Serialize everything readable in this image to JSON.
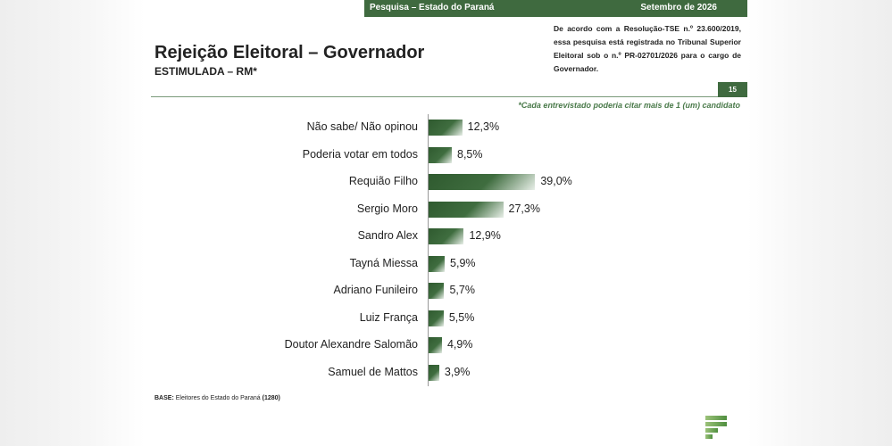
{
  "header": {
    "survey_label": "Pesquisa – Estado do Paraná",
    "date_label": "Setembro de 2026"
  },
  "title": "Rejeição Eleitoral – Governador",
  "subtitle": "ESTIMULADA – RM*",
  "registration_note": "De acordo com a Resolução-TSE n.º 23.600/2019, essa pesquisa está registrada no Tribunal Superior Eleitoral sob o n.º PR-02701/2026 para o cargo de Governador.",
  "page_number": "15",
  "footnote": "*Cada entrevistado poderia citar mais de 1 (um) candidato",
  "base": {
    "label": "BASE:",
    "text": "Eleitores do Estado do Paraná",
    "count": "(1280)"
  },
  "colors": {
    "brand_green": "#3f6a3f",
    "bar_dark": "#2f5a2f",
    "accent_text": "#4a7a4a"
  },
  "chart_data": {
    "type": "bar",
    "orientation": "horizontal",
    "categories": [
      "Não sabe/ Não opinou",
      "Poderia votar em todos",
      "Requião Filho",
      "Sergio Moro",
      "Sandro Alex",
      "Tayná Miessa",
      "Adriano Funileiro",
      "Luiz França",
      "Doutor Alexandre Salomão",
      "Samuel de Mattos"
    ],
    "values": [
      12.3,
      8.5,
      39.0,
      27.3,
      12.9,
      5.9,
      5.7,
      5.5,
      4.9,
      3.9
    ],
    "value_labels": [
      "12,3%",
      "8,5%",
      "39,0%",
      "27,3%",
      "12,9%",
      "5,9%",
      "5,7%",
      "5,5%",
      "4,9%",
      "3,9%"
    ],
    "unit": "%",
    "xlim": [
      0,
      45
    ],
    "grid": false,
    "legend": "none"
  }
}
